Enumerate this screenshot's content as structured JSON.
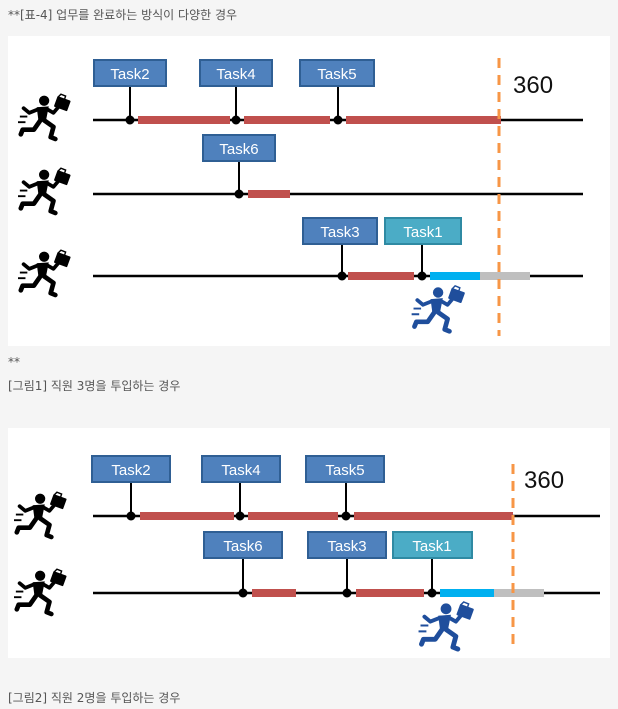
{
  "captions": {
    "table_title": "**[표-4] 업무를 완료하는 방식이 다양한 경우",
    "separator": "**",
    "figure1": "[그림1] 직원 3명을 투입하는 경우",
    "figure2": "[그림2] 직원 2명을 투입하는 경우"
  },
  "figure1": {
    "deadline_label": "360",
    "tasks": [
      "Task2",
      "Task4",
      "Task5",
      "Task6",
      "Task3",
      "Task1"
    ]
  },
  "figure2": {
    "deadline_label": "360",
    "tasks": [
      "Task2",
      "Task4",
      "Task5",
      "Task6",
      "Task3",
      "Task1"
    ]
  },
  "colors": {
    "work_bar": "#c0504d",
    "new_work_bar": "#00b0f0",
    "idle_bar": "#bfbfbf",
    "deadline": "#f79646",
    "task_box": "#4f81bd",
    "task_box_light": "#4bacc6",
    "worker_figure": "#000000",
    "new_worker_figure": "#1f4e9c"
  },
  "icons": [
    "running-worker-icon",
    "running-worker-blue-icon"
  ]
}
